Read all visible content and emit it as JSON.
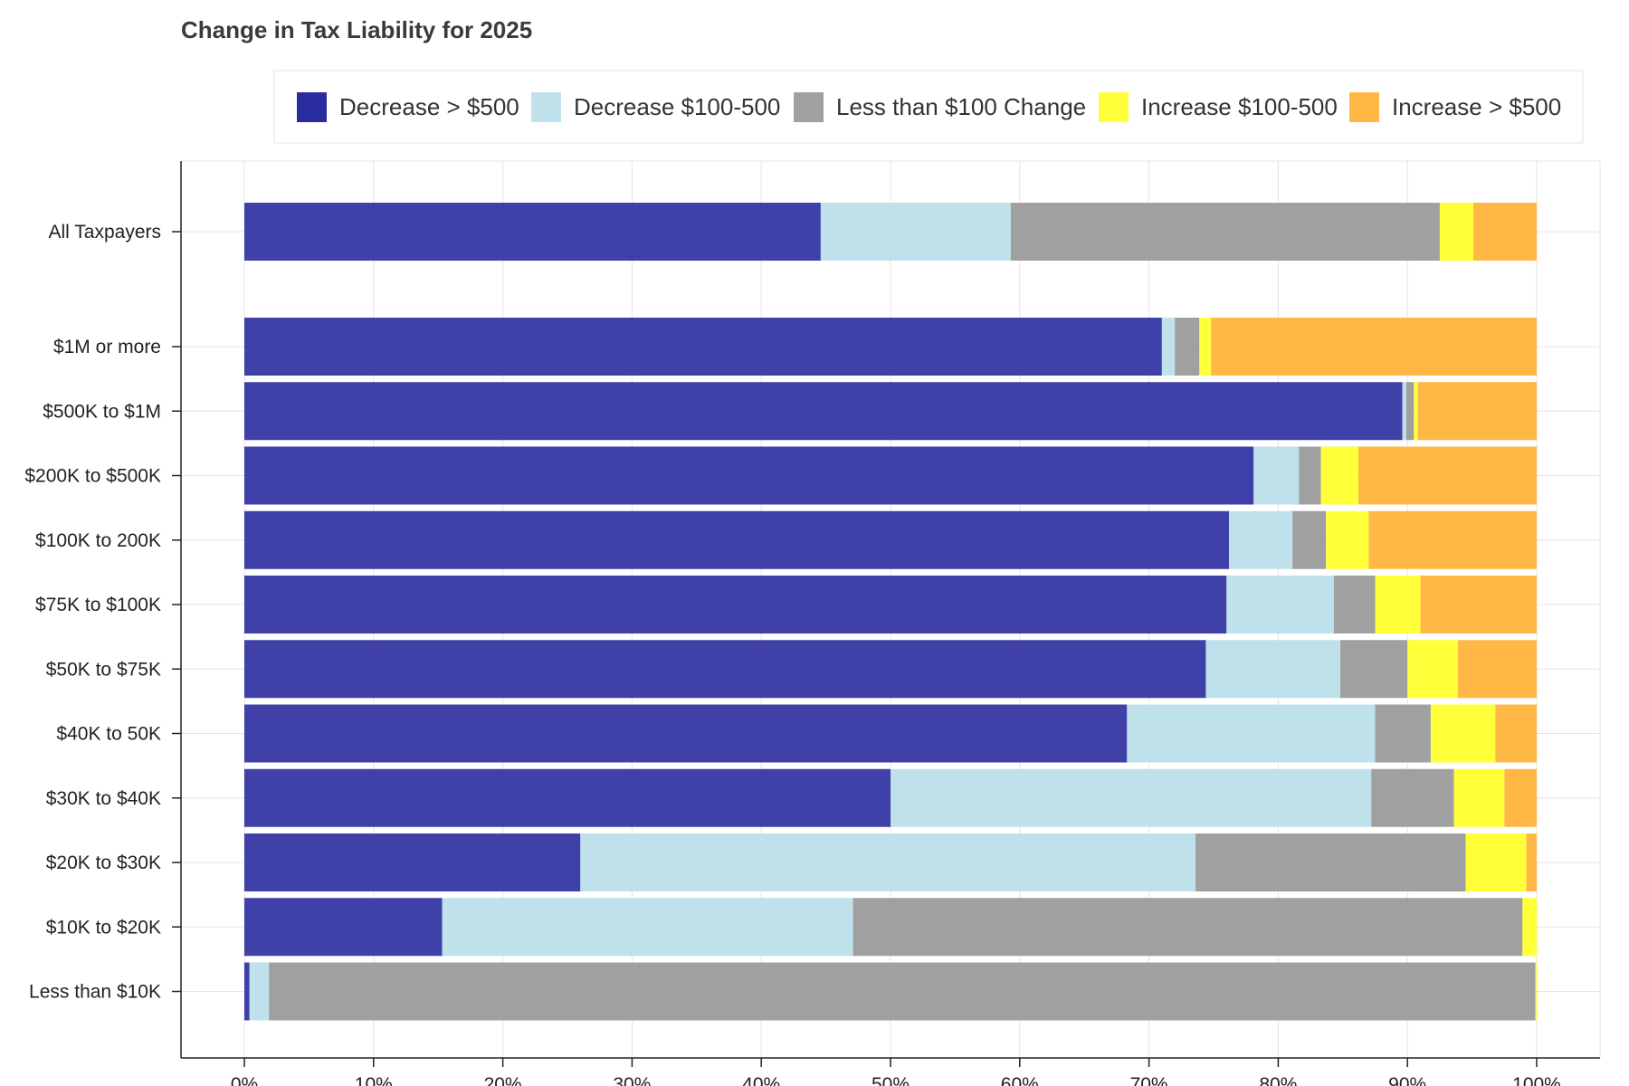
{
  "chart_data": {
    "type": "bar",
    "orientation": "horizontal",
    "stacked": true,
    "title": "Change in Tax Liability for 2025",
    "xlabel": "",
    "ylabel": "",
    "xlim": [
      0,
      100
    ],
    "x_ticks": [
      "0%",
      "10%",
      "20%",
      "30%",
      "40%",
      "50%",
      "60%",
      "70%",
      "80%",
      "90%",
      "100%"
    ],
    "grid": true,
    "legend_position": "top",
    "categories": [
      "All Taxpayers",
      "$1M or more",
      "$500K to $1M",
      "$200K to $500K",
      "$100K to 200K",
      "$75K to $100K",
      "$50K to $75K",
      "$40K to 50K",
      "$30K to $40K",
      "$20K to $30K",
      "$10K to $20K",
      "Less than $10K"
    ],
    "series": [
      {
        "name": "Decrease > $500",
        "color": "#2b2ba0",
        "values": [
          44.6,
          71.0,
          89.6,
          78.1,
          76.2,
          76.0,
          74.4,
          68.3,
          50.0,
          26.0,
          15.3,
          0.4
        ]
      },
      {
        "name": "Decrease $100-500",
        "color": "#bfe1ec",
        "values": [
          14.7,
          1.0,
          0.3,
          3.5,
          4.9,
          8.3,
          10.4,
          19.2,
          37.2,
          47.6,
          31.8,
          1.5
        ]
      },
      {
        "name": "Less than $100 Change",
        "color": "#a0a0a0",
        "values": [
          33.2,
          1.9,
          0.6,
          1.7,
          2.6,
          3.2,
          5.2,
          4.3,
          6.4,
          20.9,
          51.8,
          98.0
        ]
      },
      {
        "name": "Increase $100-500",
        "color": "#ffff3a",
        "values": [
          2.6,
          0.9,
          0.3,
          2.9,
          3.3,
          3.5,
          3.9,
          5.0,
          3.9,
          4.7,
          1.1,
          0.1
        ]
      },
      {
        "name": "Increase > $500",
        "color": "#ffb845",
        "values": [
          4.9,
          25.2,
          9.2,
          13.8,
          13.0,
          9.0,
          6.1,
          3.2,
          2.5,
          0.8,
          0.0,
          0.0
        ]
      }
    ]
  }
}
